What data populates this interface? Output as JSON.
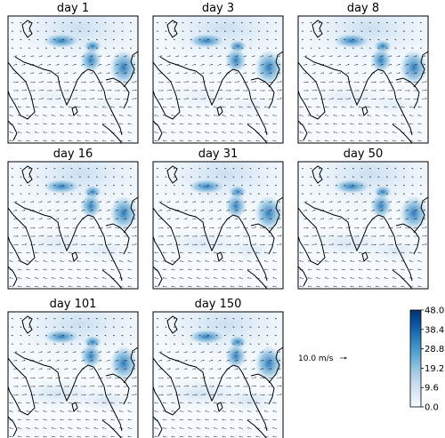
{
  "chart_data": {
    "type": "heatmap",
    "description_kind": "small-multiples map of precipitation-like field with wind vectors",
    "panels": [
      {
        "title": "day 1"
      },
      {
        "title": "day 3"
      },
      {
        "title": "day 8"
      },
      {
        "title": "day 16"
      },
      {
        "title": "day 31"
      },
      {
        "title": "day 50"
      },
      {
        "title": "day 101"
      },
      {
        "title": "day 150"
      }
    ],
    "colorbar": {
      "ticks": [
        "0.0",
        "9.6",
        "19.2",
        "28.8",
        "38.4",
        "48.0"
      ],
      "range": [
        0.0,
        48.0
      ],
      "colors": [
        "#f7fbff",
        "#deebf7",
        "#c6dbef",
        "#9ecae1",
        "#6baed6",
        "#4292c6",
        "#2171b5",
        "#08519c",
        "#08306b"
      ]
    },
    "quiver_key": {
      "label": "10.0 m/s"
    }
  }
}
